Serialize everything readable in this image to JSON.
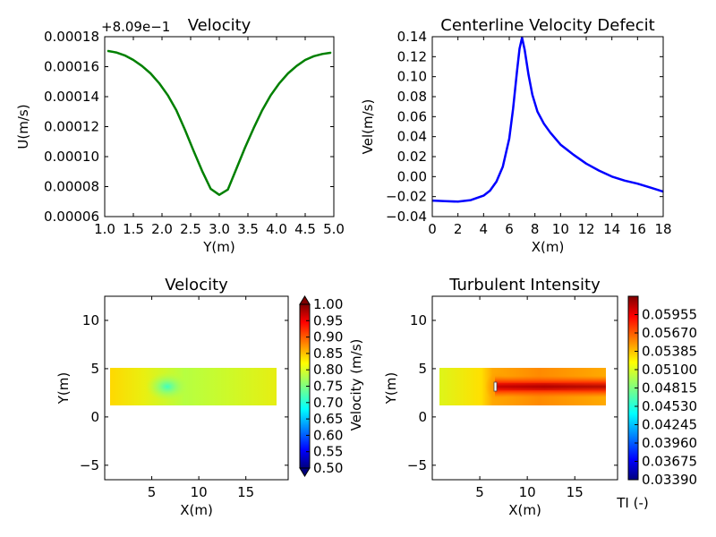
{
  "chart_data": [
    {
      "type": "line",
      "title": "Velocity",
      "xlabel": "Y(m)",
      "ylabel": "U(m/s)",
      "offset_text": "+8.09e−1",
      "xlim": [
        1.0,
        5.0
      ],
      "ylim": [
        6e-05,
        0.00018
      ],
      "xticks": [
        "1.0",
        "1.5",
        "2.0",
        "2.5",
        "3.0",
        "3.5",
        "4.0",
        "4.5",
        "5.0"
      ],
      "yticks": [
        "0.00006",
        "0.00008",
        "0.00010",
        "0.00012",
        "0.00014",
        "0.00016",
        "0.00018"
      ],
      "color": "#008000",
      "x": [
        1.05,
        1.2,
        1.35,
        1.5,
        1.65,
        1.8,
        1.95,
        2.1,
        2.25,
        2.4,
        2.55,
        2.7,
        2.85,
        3.0,
        3.15,
        3.3,
        3.45,
        3.6,
        3.75,
        3.9,
        4.05,
        4.2,
        4.35,
        4.5,
        4.65,
        4.8,
        4.95
      ],
      "y": [
        0.0001705,
        0.0001695,
        0.0001675,
        0.0001645,
        0.0001605,
        0.0001555,
        0.000149,
        0.000141,
        0.000131,
        0.000118,
        0.000104,
        9.05e-05,
        7.85e-05,
        7.45e-05,
        7.8e-05,
        9.2e-05,
        0.000106,
        0.000119,
        0.000131,
        0.000141,
        0.000149,
        0.0001555,
        0.0001605,
        0.0001645,
        0.000167,
        0.0001685,
        0.0001693
      ]
    },
    {
      "type": "line",
      "title": "Centerline Velocity Defecit",
      "xlabel": "X(m)",
      "ylabel": "Vel(m/s)",
      "xlim": [
        0,
        18
      ],
      "ylim": [
        -0.04,
        0.14
      ],
      "xticks": [
        "0",
        "2",
        "4",
        "6",
        "8",
        "10",
        "12",
        "14",
        "16",
        "18"
      ],
      "yticks": [
        "−0.04",
        "−0.02",
        "0.00",
        "0.02",
        "0.04",
        "0.06",
        "0.08",
        "0.10",
        "0.12",
        "0.14"
      ],
      "color": "#0000ff",
      "x": [
        0,
        1,
        2,
        3,
        4,
        4.5,
        5,
        5.5,
        6,
        6.3,
        6.6,
        6.8,
        7.0,
        7.2,
        7.5,
        7.8,
        8.2,
        8.7,
        9.2,
        10,
        11,
        12,
        13,
        14,
        15,
        16,
        17,
        18
      ],
      "y": [
        -0.024,
        -0.0245,
        -0.025,
        -0.0235,
        -0.019,
        -0.014,
        -0.005,
        0.01,
        0.038,
        0.068,
        0.105,
        0.128,
        0.139,
        0.127,
        0.102,
        0.082,
        0.065,
        0.053,
        0.044,
        0.032,
        0.022,
        0.013,
        0.006,
        0.0,
        -0.004,
        -0.007,
        -0.011,
        -0.015
      ]
    },
    {
      "type": "heatmap",
      "title": "Velocity",
      "xlabel": "X(m)",
      "ylabel": "Y(m)",
      "xlim": [
        0,
        19.5
      ],
      "ylim": [
        -6.5,
        12.5
      ],
      "xticks": [
        "5",
        "10",
        "15"
      ],
      "yticks": [
        "−5",
        "0",
        "5",
        "10"
      ],
      "field_extent": {
        "x": [
          0.8,
          18.7
        ],
        "y": [
          1,
          5
        ]
      },
      "wake_center": [
        6.8,
        3
      ],
      "colorbar_label": "Velocity (m/s)",
      "colorbar_ticks": [
        "0.50",
        "0.55",
        "0.60",
        "0.65",
        "0.70",
        "0.75",
        "0.80",
        "0.85",
        "0.90",
        "0.95",
        "1.00"
      ],
      "colorbar_range": [
        0.5,
        1.0
      ],
      "colormap": "jet"
    },
    {
      "type": "heatmap",
      "title": "Turbulent Intensity",
      "xlabel": "X(m)",
      "ylabel": "Y(m)",
      "xlim": [
        0,
        19.5
      ],
      "ylim": [
        -6.5,
        12.5
      ],
      "xticks": [
        "5",
        "10",
        "15"
      ],
      "yticks": [
        "−5",
        "0",
        "5",
        "10"
      ],
      "field_extent": {
        "x": [
          0.8,
          18.7
        ],
        "y": [
          1,
          5
        ]
      },
      "turbine_x": 6.8,
      "wake_center_y": 3,
      "colorbar_label": "TI (-)",
      "colorbar_ticks": [
        "0.03390",
        "0.03675",
        "0.03960",
        "0.04245",
        "0.04530",
        "0.04815",
        "0.05100",
        "0.05385",
        "0.05670",
        "0.05955"
      ],
      "colorbar_range": [
        0.0339,
        0.0624
      ],
      "colormap": "jet"
    }
  ]
}
